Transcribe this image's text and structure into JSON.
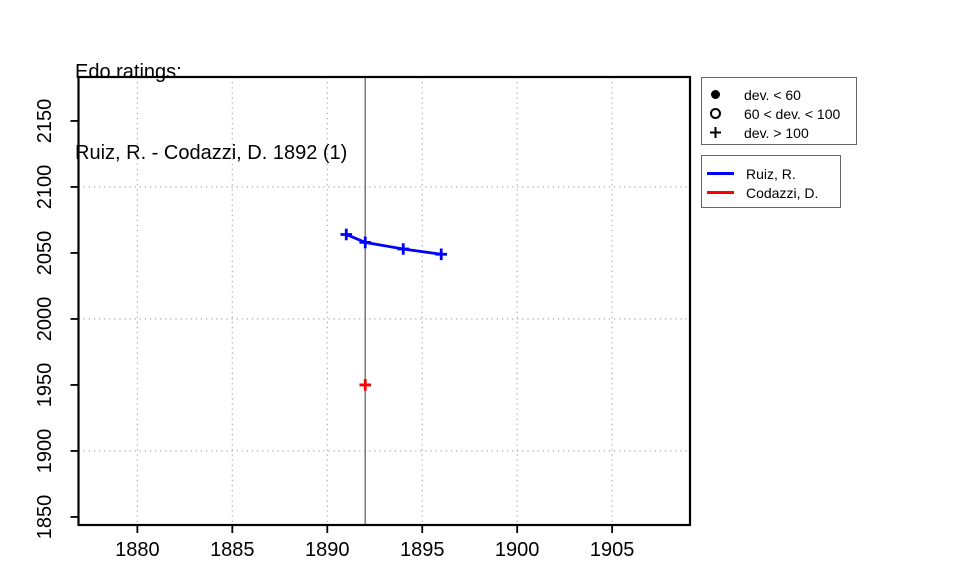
{
  "title": {
    "line1": "Edo ratings:",
    "line2": "Ruiz, R. - Codazzi, D. 1892 (1)"
  },
  "chart_data": {
    "type": "line",
    "title": "Edo ratings: Ruiz, R. - Codazzi, D. 1892 (1)",
    "xlabel": "",
    "ylabel": "",
    "xlim": [
      1876.9,
      1909.1
    ],
    "ylim": [
      1843.9,
      2183.3
    ],
    "x_ticks": [
      1880,
      1885,
      1890,
      1895,
      1900,
      1905
    ],
    "y_ticks": [
      1850,
      1900,
      1950,
      2000,
      2050,
      2100,
      2150
    ],
    "grid": {
      "vertical_at": [
        1880,
        1885,
        1890,
        1895,
        1900,
        1905
      ],
      "horizontal_at": [
        1900,
        2000,
        2100
      ],
      "style": "dotted",
      "color": "#b3b3b3"
    },
    "event_vline": {
      "x": 1892,
      "color": "#808080"
    },
    "series": [
      {
        "name": "Ruiz, R.",
        "color": "#0000ff",
        "marker": "plus",
        "marker_meaning": "dev. > 100",
        "x": [
          1891,
          1892,
          1894,
          1896
        ],
        "y": [
          2064,
          2058,
          2053,
          2049
        ],
        "line": true
      },
      {
        "name": "Codazzi, D.",
        "color": "#ff0000",
        "marker": "plus",
        "marker_meaning": "dev. > 100",
        "x": [
          1892
        ],
        "y": [
          1950
        ],
        "line": true
      }
    ],
    "legend_position": "right-outside"
  },
  "legends": {
    "deviation": {
      "items": [
        {
          "symbol": "filled-circle",
          "label": "dev. < 60"
        },
        {
          "symbol": "open-circle",
          "label": "60 < dev. < 100"
        },
        {
          "symbol": "plus",
          "label": "dev. > 100"
        }
      ]
    },
    "players": {
      "items": [
        {
          "color": "#0000ff",
          "label": "Ruiz, R."
        },
        {
          "color": "#ff0000",
          "label": "Codazzi, D."
        }
      ]
    }
  }
}
